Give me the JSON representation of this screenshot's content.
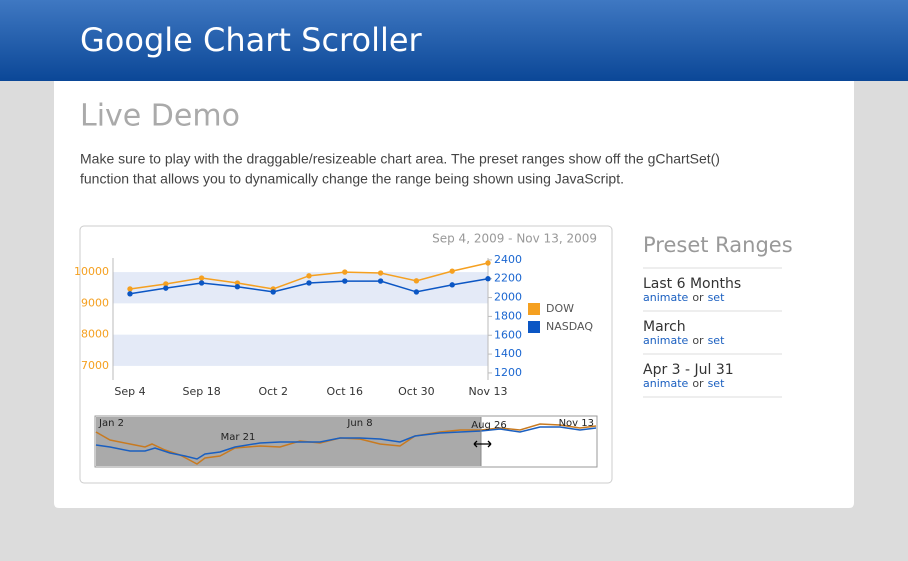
{
  "header": {
    "title": "Google Chart Scroller"
  },
  "content": {
    "heading": "Live Demo",
    "intro": [
      "Make sure to play with the draggable/resizeable chart area. The preset ranges show off the gChartSet()",
      "function that allows you to dynamically change the range being shown using JavaScript."
    ]
  },
  "chart_data": {
    "type": "line",
    "date_range": "Sep 4, 2009 - Nov 13, 2009",
    "categories": [
      "Sep 4",
      null,
      "Sep 18",
      null,
      "Oct 2",
      null,
      "Oct 16",
      null,
      "Oct 30",
      null,
      "Nov 13"
    ],
    "series": [
      {
        "name": "DOW",
        "color": "#f5a020",
        "values": [
          9460,
          9620,
          9810,
          9650,
          9460,
          9880,
          10000,
          9970,
          9720,
          10030,
          10290
        ]
      },
      {
        "name": "NASDAQ",
        "color": "#0b56c4",
        "axis": "y2",
        "values": [
          2040,
          2100,
          2155,
          2115,
          2060,
          2155,
          2175,
          2175,
          2060,
          2135,
          2200
        ]
      }
    ],
    "ylim": [
      6550,
      10450
    ],
    "yticks": [
      7000,
      8000,
      9000,
      10000
    ],
    "y2lim": [
      1125,
      2420
    ],
    "y2ticks": [
      1200,
      1400,
      1600,
      1800,
      2000,
      2200,
      2400
    ],
    "ytick_color": "#f5a020",
    "y2tick_color": "#1a66d0",
    "band_color": "#e4eaf7"
  },
  "scroller": {
    "labels": [
      "Jan 2",
      "Mar 21",
      "Jun 8",
      "Aug 26",
      "Nov 13"
    ]
  },
  "presets": {
    "title": "Preset Ranges",
    "items": [
      {
        "label": "Last 6 Months",
        "animate": "animate",
        "or": "or",
        "set": "set"
      },
      {
        "label": "March",
        "animate": "animate",
        "or": "or",
        "set": "set"
      },
      {
        "label": "Apr 3 - Jul 31",
        "animate": "animate",
        "or": "or",
        "set": "set"
      }
    ]
  }
}
